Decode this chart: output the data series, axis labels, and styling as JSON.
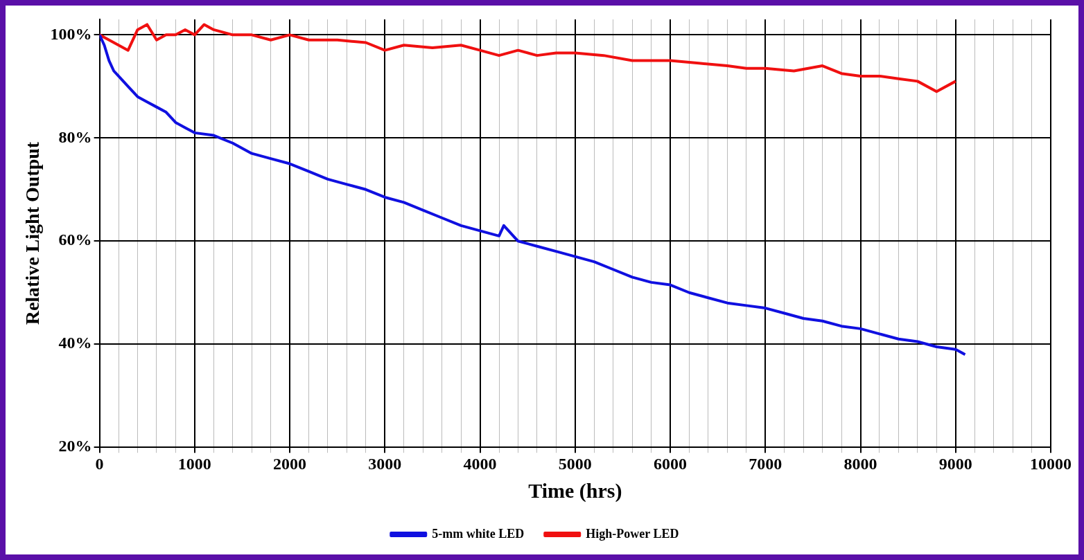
{
  "chart_data": {
    "type": "line",
    "xlabel": "Time (hrs)",
    "ylabel": "Relative Light Output",
    "xlim": [
      0,
      10000
    ],
    "xticks": [
      0,
      {
        "value": 200,
        "label": null
      },
      {
        "value": 400,
        "label": null
      },
      {
        "value": 600,
        "label": null
      },
      {
        "value": 800,
        "label": null
      },
      1000,
      {
        "value": 1200,
        "label": null
      },
      {
        "value": 1400,
        "label": null
      },
      {
        "value": 1600,
        "label": null
      },
      {
        "value": 1800,
        "label": null
      },
      2000,
      {
        "value": 2200,
        "label": null
      },
      {
        "value": 2400,
        "label": null
      },
      {
        "value": 2600,
        "label": null
      },
      {
        "value": 2800,
        "label": null
      },
      3000,
      {
        "value": 3200,
        "label": null
      },
      {
        "value": 3400,
        "label": null
      },
      {
        "value": 3600,
        "label": null
      },
      {
        "value": 3800,
        "label": null
      },
      4000,
      {
        "value": 4200,
        "label": null
      },
      {
        "value": 4400,
        "label": null
      },
      {
        "value": 4600,
        "label": null
      },
      {
        "value": 4800,
        "label": null
      },
      5000,
      {
        "value": 5200,
        "label": null
      },
      {
        "value": 5400,
        "label": null
      },
      {
        "value": 5600,
        "label": null
      },
      {
        "value": 5800,
        "label": null
      },
      6000,
      {
        "value": 6200,
        "label": null
      },
      {
        "value": 6400,
        "label": null
      },
      {
        "value": 6600,
        "label": null
      },
      {
        "value": 6800,
        "label": null
      },
      7000,
      {
        "value": 7200,
        "label": null
      },
      {
        "value": 7400,
        "label": null
      },
      {
        "value": 7600,
        "label": null
      },
      {
        "value": 7800,
        "label": null
      },
      8000,
      {
        "value": 8200,
        "label": null
      },
      {
        "value": 8400,
        "label": null
      },
      {
        "value": 8600,
        "label": null
      },
      {
        "value": 8800,
        "label": null
      },
      9000,
      {
        "value": 9200,
        "label": null
      },
      {
        "value": 9400,
        "label": null
      },
      {
        "value": 9600,
        "label": null
      },
      {
        "value": 9800,
        "label": null
      },
      10000
    ],
    "ylim": [
      20,
      103
    ],
    "yticks": [
      {
        "value": 20,
        "label": "20%"
      },
      {
        "value": 40,
        "label": "40%"
      },
      {
        "value": 60,
        "label": "60%"
      },
      {
        "value": 80,
        "label": "80%"
      },
      {
        "value": 100,
        "label": "100%"
      }
    ],
    "grid": true,
    "legend": "bottom",
    "line_style": "solid",
    "series": [
      {
        "name": "5-mm white LED",
        "color": "#1010e0",
        "x": [
          0,
          50,
          100,
          150,
          200,
          300,
          400,
          500,
          600,
          700,
          800,
          900,
          1000,
          1200,
          1400,
          1600,
          1800,
          2000,
          2200,
          2400,
          2600,
          2800,
          3000,
          3200,
          3400,
          3600,
          3800,
          4000,
          4200,
          4250,
          4400,
          4600,
          4800,
          5000,
          5200,
          5400,
          5600,
          5800,
          6000,
          6200,
          6400,
          6600,
          6800,
          7000,
          7200,
          7400,
          7600,
          7800,
          8000,
          8200,
          8400,
          8600,
          8800,
          9000,
          9100
        ],
        "values": [
          100,
          98,
          95,
          93,
          92,
          90,
          88,
          87,
          86,
          85,
          83,
          82,
          81,
          80.5,
          79,
          77,
          76,
          75,
          73.5,
          72,
          71,
          70,
          68.5,
          67.5,
          66,
          64.5,
          63,
          62,
          61,
          63,
          60,
          59,
          58,
          57,
          56,
          54.5,
          53,
          52,
          51.5,
          50,
          49,
          48,
          47.5,
          47,
          46,
          45,
          44.5,
          43.5,
          43,
          42,
          41,
          40.5,
          39.5,
          39,
          38
        ]
      },
      {
        "name": "High-Power LED",
        "color": "#f01010",
        "x": [
          0,
          100,
          200,
          300,
          400,
          500,
          600,
          700,
          800,
          900,
          1000,
          1100,
          1200,
          1400,
          1600,
          1800,
          2000,
          2200,
          2500,
          2800,
          3000,
          3200,
          3500,
          3800,
          4000,
          4200,
          4400,
          4600,
          4800,
          5000,
          5300,
          5600,
          5800,
          6000,
          6300,
          6600,
          6800,
          7000,
          7300,
          7600,
          7800,
          8000,
          8200,
          8400,
          8600,
          8800,
          9000
        ],
        "values": [
          100,
          99,
          98,
          97,
          101,
          102,
          99,
          100,
          100,
          101,
          100,
          102,
          101,
          100,
          100,
          99,
          100,
          99,
          99,
          98.5,
          97,
          98,
          97.5,
          98,
          97,
          96,
          97,
          96,
          96.5,
          96.5,
          96,
          95,
          95,
          95,
          94.5,
          94,
          93.5,
          93.5,
          93,
          94,
          92.5,
          92,
          92,
          91.5,
          91,
          89,
          91
        ]
      }
    ]
  }
}
